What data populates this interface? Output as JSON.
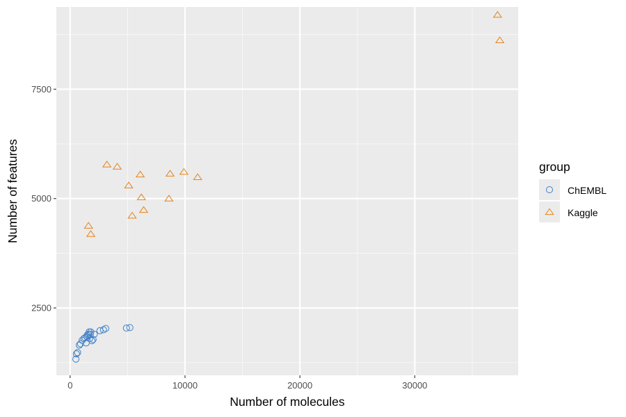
{
  "chart_data": {
    "type": "scatter",
    "xlabel": "Number of molecules",
    "ylabel": "Number of features",
    "xlim": [
      -1200,
      39000
    ],
    "ylim": [
      960,
      9380
    ],
    "x_ticks": [
      0,
      10000,
      20000,
      30000
    ],
    "x_tick_labels": [
      "0",
      "10000",
      "20000",
      "30000"
    ],
    "y_ticks": [
      2500,
      5000,
      7500
    ],
    "y_tick_labels": [
      "2500",
      "5000",
      "7500"
    ],
    "grid": true,
    "legend": {
      "title": "group",
      "position": "right"
    },
    "series": [
      {
        "name": "ChEMBL",
        "marker": "circle-open",
        "color": "#3d7fc7",
        "points": [
          [
            500,
            1330
          ],
          [
            550,
            1450
          ],
          [
            650,
            1480
          ],
          [
            800,
            1650
          ],
          [
            900,
            1680
          ],
          [
            1050,
            1760
          ],
          [
            1200,
            1800
          ],
          [
            1300,
            1820
          ],
          [
            1400,
            1700
          ],
          [
            1450,
            1850
          ],
          [
            1500,
            1880
          ],
          [
            1600,
            1900
          ],
          [
            1650,
            1950
          ],
          [
            1700,
            1800
          ],
          [
            1750,
            1900
          ],
          [
            1800,
            1950
          ],
          [
            1900,
            1750
          ],
          [
            2000,
            1780
          ],
          [
            2100,
            1900
          ],
          [
            2600,
            1980
          ],
          [
            2900,
            2000
          ],
          [
            3100,
            2030
          ],
          [
            4900,
            2040
          ],
          [
            5200,
            2050
          ]
        ]
      },
      {
        "name": "Kaggle",
        "marker": "triangle-open",
        "color": "#e6841b",
        "points": [
          [
            1600,
            4380
          ],
          [
            1800,
            4190
          ],
          [
            3200,
            5780
          ],
          [
            4100,
            5730
          ],
          [
            5100,
            5300
          ],
          [
            5400,
            4610
          ],
          [
            6100,
            5550
          ],
          [
            6200,
            5030
          ],
          [
            6400,
            4740
          ],
          [
            8600,
            5000
          ],
          [
            8700,
            5570
          ],
          [
            9900,
            5610
          ],
          [
            11100,
            5490
          ],
          [
            37200,
            9200
          ],
          [
            37400,
            8620
          ]
        ]
      }
    ]
  }
}
